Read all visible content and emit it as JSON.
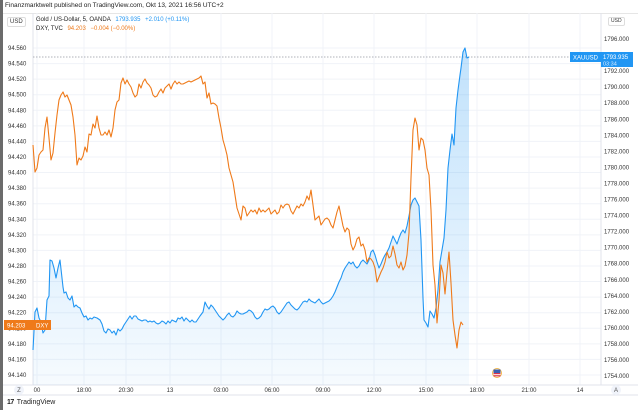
{
  "header": {
    "published_text": "Finanzmarktwelt published on TradingView.com, Okt 13, 2021 16:56 UTC+2"
  },
  "legend": {
    "gold": {
      "name": "Gold / US-Dollar, 5, OANDA",
      "value": "1793.935",
      "change": "+2.010 (+0.11%)",
      "color": "#2196f3"
    },
    "dxy": {
      "name": "DXY, TVC",
      "value": "94.203",
      "change": "−0.004 (−0.00%)",
      "color": "#ef7a1a"
    }
  },
  "axes": {
    "left_currency": "USD",
    "right_currency": "USD",
    "left_ticks": [
      "94.560",
      "94.540",
      "94.520",
      "94.500",
      "94.480",
      "94.460",
      "94.440",
      "94.420",
      "94.400",
      "94.380",
      "94.360",
      "94.340",
      "94.320",
      "94.300",
      "94.280",
      "94.260",
      "94.240",
      "94.220",
      "94.200",
      "94.180",
      "94.160",
      "94.140"
    ],
    "right_ticks": [
      "1796.000",
      "1794.000",
      "1792.000",
      "1790.000",
      "1788.000",
      "1786.000",
      "1784.000",
      "1782.000",
      "1780.000",
      "1778.000",
      "1776.000",
      "1774.000",
      "1772.000",
      "1770.000",
      "1768.000",
      "1766.000",
      "1764.000",
      "1762.000",
      "1760.000",
      "1758.000",
      "1756.000",
      "1754.000"
    ],
    "x_ticks": [
      "00",
      "18:00",
      "20:30",
      "13",
      "03:00",
      "06:00",
      "09:00",
      "12:00",
      "15:00",
      "18:00",
      "21:00",
      "14"
    ],
    "left_price_label": {
      "value": "94.203",
      "tag": "DXY",
      "color": "#ef7a1a"
    },
    "right_price_label": {
      "tag": "XAUUSD",
      "value": "1793.935",
      "countdown": "03:34",
      "color": "#2196f3"
    },
    "auto_scale_button": "A",
    "zoom_button": "Z"
  },
  "footer": {
    "brand": "TradingView",
    "logo": "17"
  },
  "chart_data": {
    "type": "line",
    "title": "Gold / US-Dollar, 5, OANDA vs DXY, TVC",
    "xlabel": "",
    "x": [
      "00",
      "18:00",
      "20:30",
      "13",
      "03:00",
      "06:00",
      "09:00",
      "12:00",
      "15:00",
      "18:00",
      "21:00",
      "14"
    ],
    "series": [
      {
        "name": "XAUUSD (Gold / US-Dollar, 5, OANDA)",
        "axis": "right",
        "color": "#2196f3",
        "style": "area",
        "last": 1793.935,
        "ylim": [
          1754,
          1797
        ],
        "points": [
          [
            "00",
            1757.8
          ],
          [
            "16:30",
            1763.2
          ],
          [
            "17:00",
            1767.6
          ],
          [
            "17:30",
            1764.5
          ],
          [
            "18:00",
            1763.2
          ],
          [
            "19:00",
            1762.0
          ],
          [
            "20:30",
            1763.0
          ],
          [
            "22:00",
            1761.8
          ],
          [
            "13 00:00",
            1761.6
          ],
          [
            "03:00",
            1762.0
          ],
          [
            "05:00",
            1762.3
          ],
          [
            "06:00",
            1762.6
          ],
          [
            "08:00",
            1763.0
          ],
          [
            "09:00",
            1764.2
          ],
          [
            "10:00",
            1766.5
          ],
          [
            "11:00",
            1767.0
          ],
          [
            "12:00",
            1768.2
          ],
          [
            "13:00",
            1770.0
          ],
          [
            "14:00",
            1773.5
          ],
          [
            "14:30",
            1775.5
          ],
          [
            "15:00",
            1758.5
          ],
          [
            "15:30",
            1765.0
          ],
          [
            "16:00",
            1782.0
          ],
          [
            "16:30",
            1790.0
          ],
          [
            "16:56",
            1793.935
          ]
        ]
      },
      {
        "name": "DXY (TVC)",
        "axis": "left",
        "color": "#ef7a1a",
        "style": "line",
        "last": 94.203,
        "ylim": [
          94.13,
          94.59
        ],
        "points": [
          [
            "00",
            94.455
          ],
          [
            "16:30",
            94.405
          ],
          [
            "17:00",
            94.46
          ],
          [
            "17:30",
            94.49
          ],
          [
            "18:00",
            94.41
          ],
          [
            "19:00",
            94.44
          ],
          [
            "20:00",
            94.55
          ],
          [
            "20:30",
            94.51
          ],
          [
            "22:00",
            94.51
          ],
          [
            "13 00:00",
            94.51
          ],
          [
            "02:00",
            94.51
          ],
          [
            "03:00",
            94.44
          ],
          [
            "04:00",
            94.34
          ],
          [
            "05:00",
            94.36
          ],
          [
            "06:00",
            94.36
          ],
          [
            "07:00",
            94.36
          ],
          [
            "08:00",
            94.37
          ],
          [
            "09:00",
            94.38
          ],
          [
            "10:00",
            94.32
          ],
          [
            "11:00",
            94.33
          ],
          [
            "12:00",
            94.27
          ],
          [
            "13:00",
            94.29
          ],
          [
            "14:00",
            94.3
          ],
          [
            "14:30",
            94.43
          ],
          [
            "15:00",
            94.24
          ],
          [
            "15:30",
            94.21
          ],
          [
            "16:00",
            94.22
          ],
          [
            "16:30",
            94.17
          ],
          [
            "16:56",
            94.203
          ]
        ]
      }
    ],
    "left_axis_label": "USD",
    "right_axis_label": "USD",
    "grid": true,
    "legend_position": "top-left"
  }
}
